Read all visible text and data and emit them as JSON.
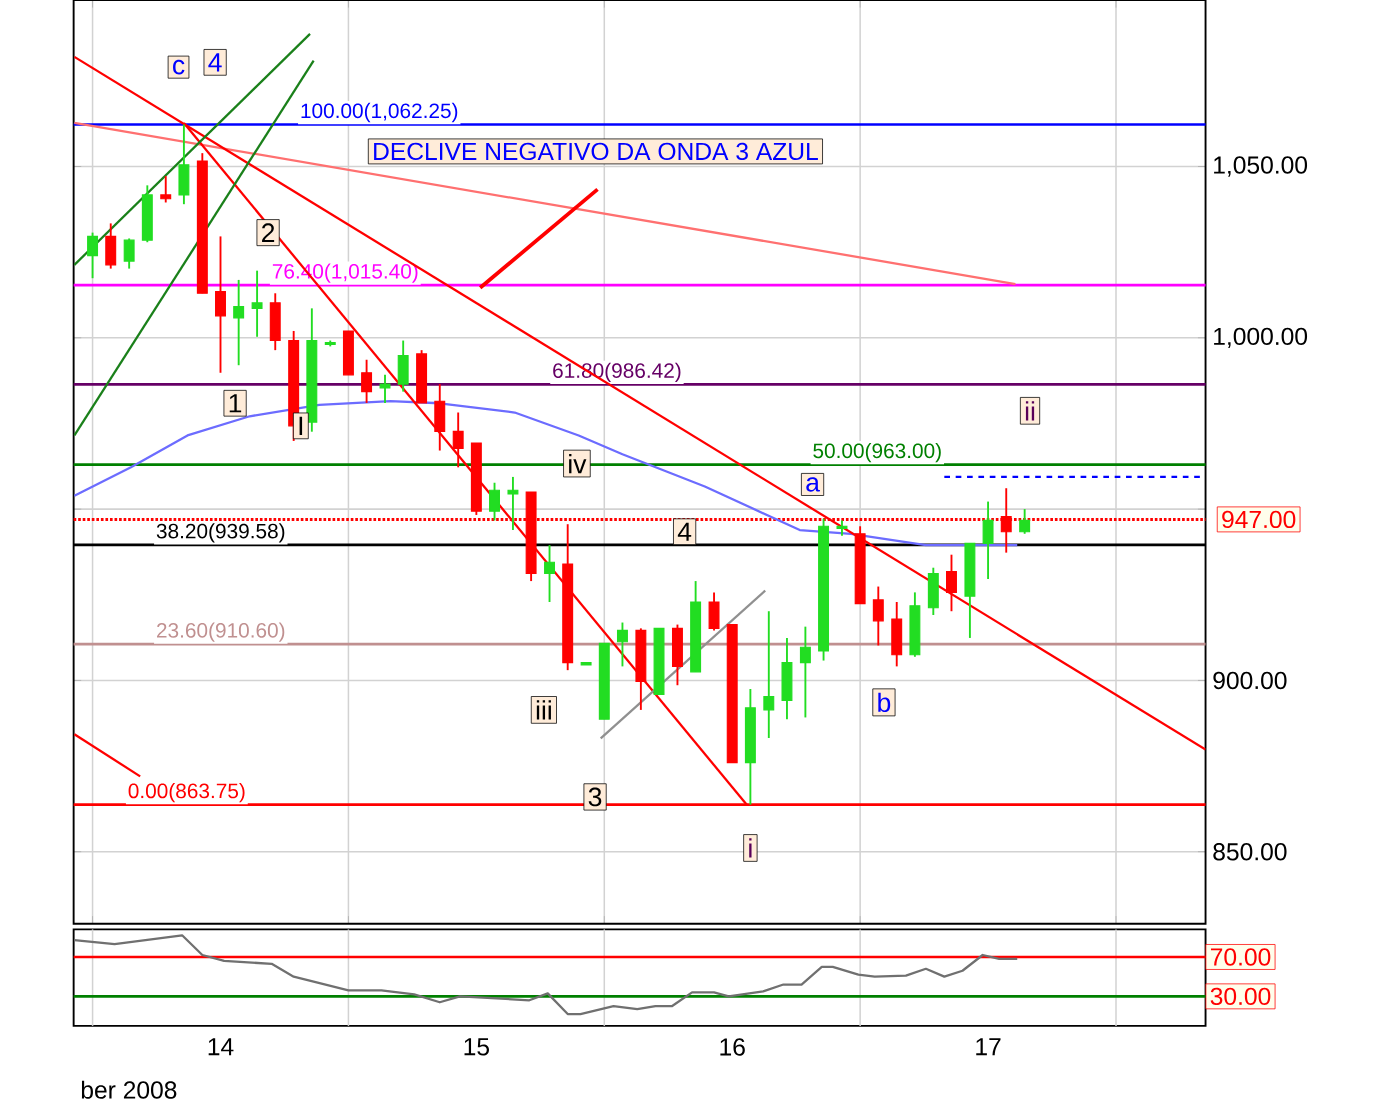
{
  "chart_data": [
    {
      "type": "candlestick",
      "tick_labels": "y",
      "grid": true,
      "x": [
        13.5,
        13.571,
        13.643,
        13.714,
        13.786,
        13.857,
        13.929,
        14.0,
        14.071,
        14.143,
        14.214,
        14.286,
        14.357,
        14.429,
        14.5,
        14.571,
        14.643,
        14.714,
        14.786,
        14.857,
        14.929,
        15.0,
        15.071,
        15.143,
        15.214,
        15.286,
        15.357,
        15.429,
        15.5,
        15.571,
        15.643,
        15.714,
        15.786,
        15.857,
        15.929,
        16.0,
        16.071,
        16.143,
        16.214,
        16.286,
        16.357,
        16.429,
        16.5,
        16.571,
        16.643,
        16.714,
        16.786,
        16.857,
        16.929,
        17.0,
        17.071,
        17.143
      ],
      "ohlc": [
        [
          1024,
          1030.7,
          1017.4,
          1029.6
        ],
        [
          1029.6,
          1033.4,
          1020.2,
          1021.3
        ],
        [
          1022.4,
          1029,
          1020.2,
          1028.5
        ],
        [
          1028.5,
          1044.5,
          1027.9,
          1041.7
        ],
        [
          1041.7,
          1047.2,
          1039.5,
          1040.6
        ],
        [
          1041.7,
          1062.25,
          1039,
          1050.5
        ],
        [
          1051.6,
          1053.9,
          1013,
          1013
        ],
        [
          1013.5,
          1029.6,
          989.8,
          1006.4
        ],
        [
          1005.8,
          1016.9,
          992,
          1009.1
        ],
        [
          1008.6,
          1019.6,
          1000.3,
          1010.2
        ],
        [
          1010.2,
          1013,
          996.4,
          999.2
        ],
        [
          999.2,
          1002,
          969.9,
          974.3
        ],
        [
          975.4,
          1008.6,
          972.6,
          999.2
        ],
        [
          998.1,
          999.2,
          997.5,
          998.6
        ],
        [
          1002,
          1002,
          989.2,
          989.2
        ],
        [
          989.8,
          993.6,
          981,
          984.3
        ],
        [
          985.4,
          989.2,
          981,
          986.5
        ],
        [
          986.5,
          999.2,
          984.3,
          994.8
        ],
        [
          995.3,
          996.4,
          981,
          981
        ],
        [
          981.5,
          986.5,
          967.1,
          972.7
        ],
        [
          972.7,
          978.2,
          962.2,
          967.7
        ],
        [
          969.3,
          969.3,
          948.3,
          949.4
        ],
        [
          949.4,
          957.7,
          946.7,
          955.5
        ],
        [
          954.4,
          959.4,
          943.9,
          955.5
        ],
        [
          955,
          955,
          929,
          931.2
        ],
        [
          931.2,
          939.5,
          922.9,
          934.5
        ],
        [
          934,
          945.6,
          903,
          905.2
        ],
        [
          904.5,
          905.2,
          904.5,
          905.2
        ],
        [
          888.7,
          910.8,
          888.7,
          910.8
        ],
        [
          911.3,
          916.9,
          904.1,
          914.6
        ],
        [
          914.6,
          915.2,
          891.4,
          899.7
        ],
        [
          895.9,
          915.2,
          895.9,
          915.2
        ],
        [
          915.2,
          916.3,
          898.6,
          904.1
        ],
        [
          902.5,
          929,
          902.5,
          922.9
        ],
        [
          922.9,
          925.7,
          914.6,
          915.2
        ],
        [
          916.3,
          916.3,
          876,
          876
        ],
        [
          876,
          897.5,
          863.75,
          892
        ],
        [
          891.4,
          920.2,
          883.2,
          895.3
        ],
        [
          894.2,
          912.4,
          888.7,
          905.2
        ],
        [
          905.2,
          915.7,
          889.2,
          909.7
        ],
        [
          908.6,
          947.2,
          905.8,
          945
        ],
        [
          944.4,
          946.7,
          942.2,
          945
        ],
        [
          942.8,
          945,
          922.4,
          922.4
        ],
        [
          923.5,
          927.4,
          910.2,
          917.4
        ],
        [
          917.9,
          922.9,
          904.1,
          907.5
        ],
        [
          907.5,
          925.7,
          906.9,
          921.8
        ],
        [
          921.2,
          932.9,
          919.1,
          931.2
        ],
        [
          931.8,
          936.7,
          920.2,
          925.7
        ],
        [
          924.6,
          940,
          912.4,
          940
        ],
        [
          940,
          952.2,
          929.6,
          946.7
        ],
        [
          947.8,
          956.1,
          937.3,
          943.4
        ],
        [
          943.4,
          950,
          942.8,
          946.7
        ]
      ],
      "series": [
        {
          "type": "line",
          "color": "#6c6cff",
          "x": [
            13.429,
            13.65,
            13.871,
            14.114,
            14.386,
            14.664,
            14.857,
            15.15,
            15.4,
            15.571,
            15.893,
            16.264,
            16.464,
            16.757,
            17.114
          ],
          "values": [
            953.9,
            962.2,
            971.5,
            977.1,
            980.4,
            981.5,
            980.9,
            978.2,
            971.5,
            966,
            956.6,
            943.9,
            942.8,
            939.5,
            939.5
          ]
        },
        {
          "type": "line",
          "color": "#ff7070",
          "x": [
            13.429,
            17.107
          ],
          "values": [
            1062.7,
            1015.7
          ]
        },
        {
          "type": "line",
          "color": "#ff0000",
          "x": [
            13.429,
            17.85
          ],
          "values": [
            1082,
            879.8
          ]
        },
        {
          "type": "line",
          "color": "#ff0000",
          "x": [
            13.857,
            16.057
          ],
          "values": [
            1062.7,
            863.7
          ]
        },
        {
          "type": "line",
          "color": "#ff0000",
          "x": [
            13.429,
            13.686
          ],
          "values": [
            884.3,
            872
          ]
        },
        {
          "type": "line",
          "color": "#1a801a",
          "x": [
            13.429,
            14.35
          ],
          "values": [
            1021.3,
            1088.7
          ]
        },
        {
          "type": "line",
          "color": "#1a801a",
          "x": [
            13.429,
            14.364
          ],
          "values": [
            971.5,
            1080.9
          ]
        },
        {
          "type": "line",
          "color": "#909090",
          "x": [
            15.486,
            16.129
          ],
          "values": [
            883.1,
            926.2
          ]
        },
        {
          "type": "line",
          "color": "#0000ff",
          "line_style": "dashed",
          "x": [
            16.829,
            17.85
          ],
          "values": [
            959.4,
            959.4
          ]
        }
      ],
      "xlim": [
        13.426,
        17.85
      ],
      "ylim": [
        829,
        1098.6
      ],
      "xticks": [
        {
          "value": 13.5,
          "label": null
        },
        {
          "value": 14.5,
          "label": null
        },
        {
          "value": 15.5,
          "label": null
        },
        {
          "value": 16.5,
          "label": null
        },
        {
          "value": 17.5,
          "label": null
        }
      ],
      "yticks": [
        {
          "value": 850,
          "label": "850.00"
        },
        {
          "value": 900,
          "label": "900.00"
        },
        {
          "value": 950,
          "label": null
        },
        {
          "value": 1000,
          "label": "1,000.00"
        },
        {
          "value": 1050,
          "label": "1,050.00"
        }
      ],
      "ref_lines": [
        {
          "axis": "y",
          "value": 1062.25,
          "label": "100.00(1,062.25)",
          "color": "#0000ff"
        },
        {
          "axis": "y",
          "value": 1015.4,
          "label": "76.40(1,015.40)",
          "color": "#ff00ff"
        },
        {
          "axis": "y",
          "value": 986.42,
          "label": "61.80(986.42)",
          "color": "#660066"
        },
        {
          "axis": "y",
          "value": 963,
          "label": "50.00(963.00)",
          "color": "#008000"
        },
        {
          "axis": "y",
          "value": 939.58,
          "label": "38.20(939.58)",
          "color": "#000000"
        },
        {
          "axis": "y",
          "value": 910.6,
          "label": "23.60(910.60)",
          "color": "#c09090"
        },
        {
          "axis": "y",
          "value": 863.75,
          "label": "0.00(863.75)",
          "color": "#ff0000"
        },
        {
          "axis": "y",
          "value": 947,
          "label": "947.00",
          "color": "#ff0000",
          "line_style": "dotted"
        }
      ],
      "annotations": [
        {
          "text": "c",
          "x": 13.836,
          "y": 1079
        },
        {
          "text": "4",
          "x": 13.979,
          "y": 1080.4
        },
        {
          "text": "2",
          "x": 14.186,
          "y": 1030.7
        },
        {
          "text": "1",
          "x": 14.057,
          "y": 980.9
        },
        {
          "text": "I",
          "x": 14.314,
          "y": 974.3
        },
        {
          "text": "iv",
          "x": 15.393,
          "y": 963.3
        },
        {
          "text": "iii",
          "x": 15.264,
          "y": 891.4
        },
        {
          "text": "3",
          "x": 15.464,
          "y": 866
        },
        {
          "text": "4",
          "x": 15.814,
          "y": 943.4
        },
        {
          "text": "a",
          "x": 16.314,
          "y": 957.2
        },
        {
          "text": "b",
          "x": 16.593,
          "y": 893.6
        },
        {
          "text": "i",
          "x": 16.071,
          "y": 851.1
        },
        {
          "text": "ii",
          "x": 17.164,
          "y": 978.7
        },
        {
          "text": "DECLIVE NEGATIVO DA ONDA 3 AZUL",
          "x": 15.015,
          "y": 1014.6
        }
      ]
    },
    {
      "type": "line",
      "grid": "x",
      "xlabel": "ber 2008",
      "series": [
        {
          "color": "#707070",
          "x": [
            13.429,
            13.586,
            13.85,
            13.929,
            14.014,
            14.2,
            14.286,
            14.364,
            14.5,
            14.629,
            14.757,
            14.857,
            14.936,
            15.207,
            15.279,
            15.357,
            15.407,
            15.536,
            15.629,
            15.7,
            15.764,
            15.843,
            15.929,
            15.986,
            16.121,
            16.2,
            16.271,
            16.35,
            16.393,
            16.493,
            16.557,
            16.679,
            16.757,
            16.829,
            16.9,
            16.979,
            17.043,
            17.114
          ],
          "values": [
            87,
            83,
            92,
            72,
            66,
            63,
            50,
            45,
            36,
            36,
            32,
            24,
            30,
            26,
            33,
            12,
            12,
            20,
            17,
            20,
            20,
            34,
            34,
            30,
            35,
            42,
            42,
            60,
            60,
            52,
            50,
            51,
            58,
            50,
            56,
            72,
            68,
            68
          ]
        }
      ],
      "xlim": [
        13.426,
        17.85
      ],
      "ylim": [
        0,
        98
      ],
      "xticks": [
        {
          "value": 13.5,
          "label": null
        },
        14,
        {
          "value": 14.5,
          "label": null
        },
        15,
        {
          "value": 15.5,
          "label": null
        },
        16,
        {
          "value": 16.5,
          "label": null
        },
        17,
        {
          "value": 17.5,
          "label": null
        }
      ],
      "yticks": [
        {
          "value": 70,
          "label": "70.00"
        },
        {
          "value": 30,
          "label": "30.00"
        }
      ],
      "ref_lines": [
        {
          "axis": "y",
          "value": 70,
          "color": "#ff0000"
        },
        {
          "axis": "y",
          "value": 30,
          "color": "#008000"
        }
      ]
    }
  ]
}
